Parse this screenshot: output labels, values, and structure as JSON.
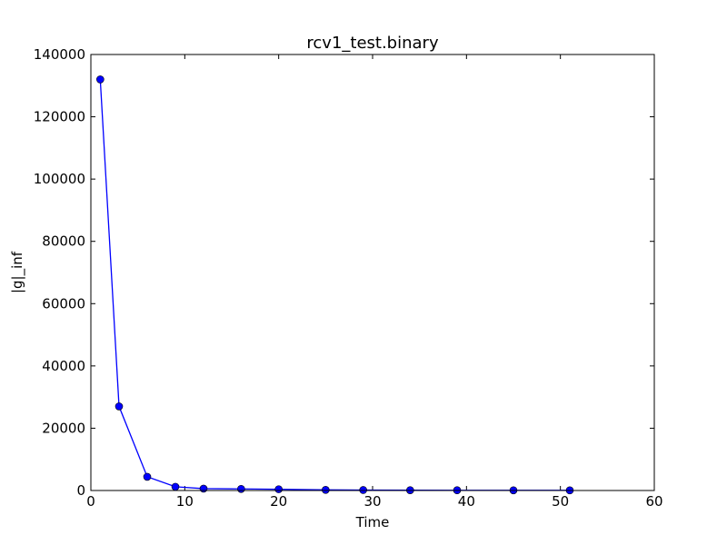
{
  "chart_data": {
    "type": "line",
    "title": "rcv1_test.binary",
    "xlabel": "Time",
    "ylabel": "|g|_inf",
    "xlim": [
      0,
      60
    ],
    "ylim": [
      0,
      140000
    ],
    "xticks": [
      0,
      10,
      20,
      30,
      40,
      50,
      60
    ],
    "yticks": [
      0,
      20000,
      40000,
      60000,
      80000,
      100000,
      120000,
      140000
    ],
    "grid": false,
    "legend": "none",
    "series": [
      {
        "color": "#0000ff",
        "marker": "circle",
        "x": [
          1,
          3,
          6,
          9,
          12,
          16,
          20,
          25,
          29,
          34,
          39,
          45,
          51
        ],
        "y": [
          132000,
          27000,
          4400,
          1200,
          600,
          500,
          400,
          200,
          150,
          100,
          80,
          60,
          50
        ]
      }
    ]
  }
}
